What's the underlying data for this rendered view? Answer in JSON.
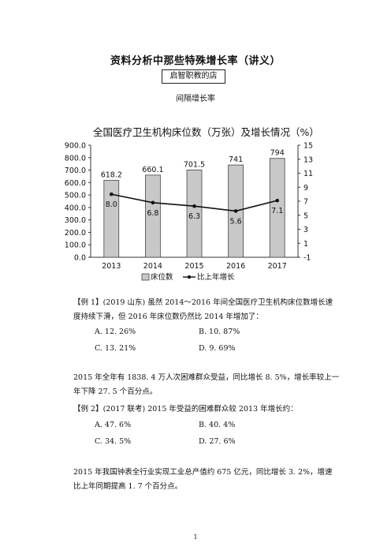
{
  "doc": {
    "title": "资料分析中那些特殊增长率（讲义）",
    "shop": "启智职教的店",
    "subheading": "间隔增长率",
    "page_number": "1"
  },
  "chart_data": {
    "type": "bar",
    "title": "全国医疗卫生机构床位数（万张）及增长情况（%）",
    "categories": [
      "2013",
      "2014",
      "2015",
      "2016",
      "2017"
    ],
    "series": [
      {
        "name": "床位数",
        "type": "bar",
        "axis": "left",
        "values": [
          618.2,
          660.1,
          701.5,
          741,
          794
        ],
        "labels": [
          "618.2",
          "660.1",
          "701.5",
          "741",
          "794"
        ]
      },
      {
        "name": "比上年增长",
        "type": "line",
        "axis": "right",
        "values": [
          8.0,
          6.8,
          6.3,
          5.6,
          7.1
        ],
        "labels": [
          "8.0",
          "6.8",
          "6.3",
          "5.6",
          "7.1"
        ]
      }
    ],
    "y_left": {
      "min": 0,
      "max": 900,
      "ticks": [
        "0.0",
        "100.0",
        "200.0",
        "300.0",
        "400.0",
        "500.0",
        "600.0",
        "700.0",
        "800.0",
        "900.0"
      ]
    },
    "y_right": {
      "min": -1,
      "max": 15,
      "ticks": [
        "-1",
        "1",
        "3",
        "5",
        "7",
        "9",
        "11",
        "13",
        "15"
      ]
    },
    "legend_position": "bottom",
    "colors": {
      "bar_fill": "#c8c8c8",
      "bar_stroke": "#444444",
      "line": "#111111"
    }
  },
  "example1": {
    "text_line1": "【例 1】(2019 山东) 虽然 2014～2016 年间全国医疗卫生机构床位数增长速",
    "text_line2": "度持续下滑，但 2016 年床位数仍然比 2014 年增加了：",
    "options": {
      "a": "A. 12. 26%",
      "b": "B. 10. 87%",
      "c": "C. 13. 21%",
      "d": "D. 9. 69%"
    }
  },
  "para2": {
    "line1": "2015 年全年有 1838. 4 万人次困难群众受益，同比增长 8. 5%，增长率较上一",
    "line2": "年下降 27. 5 个百分点。"
  },
  "example2": {
    "text": "【例 2】(2017 联考) 2015 年受益的困难群众较 2013 年增长约：",
    "options": {
      "a": "A. 47. 6%",
      "b": "B. 40. 4%",
      "c": "C. 34. 5%",
      "d": "D. 27. 6%"
    }
  },
  "para3": {
    "line1": "2015 年我国钟表全行业实现工业总产值约 675 亿元，同比增长 3. 2%，增速",
    "line2": "比上年同期提高 1. 7 个百分点。"
  }
}
